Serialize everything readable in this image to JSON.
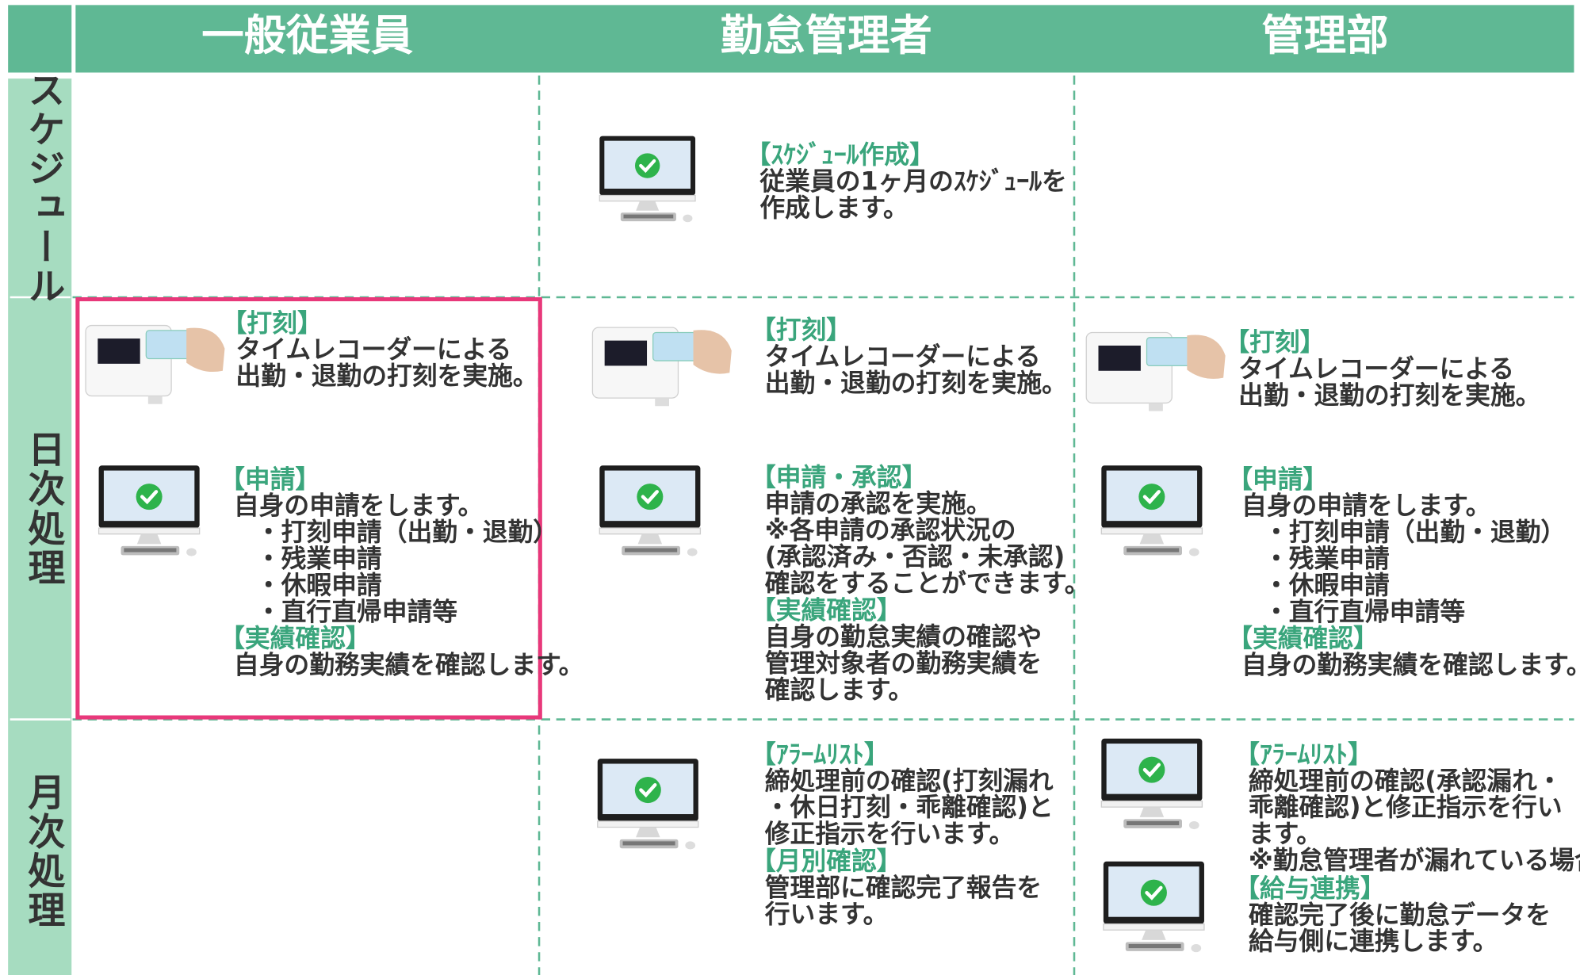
{
  "header": {
    "columns": [
      "一般従業員",
      "勤怠管理者",
      "管理部"
    ]
  },
  "rows": [
    {
      "label": "スケジュール",
      "cells": [
        [],
        [
          {
            "heading": "【ｽｹｼﾞｭｰﾙ作成】",
            "lines": [
              "従業員の1ヶ月のｽｹｼﾞｭｰﾙを",
              "作成します。"
            ]
          }
        ],
        []
      ]
    },
    {
      "label": "日次処理",
      "cells": [
        [
          {
            "heading": "【打刻】",
            "lines": [
              "タイムレコーダーによる",
              "出勤・退勤の打刻を実施。"
            ]
          },
          {
            "heading": "【申請】",
            "lines": [
              "自身の申請をします。"
            ],
            "items": [
              "・打刻申請（出勤・退勤）",
              "・残業申請",
              "・休暇申請",
              "・直行直帰申請等"
            ]
          },
          {
            "heading": "【実績確認】",
            "lines": [
              "自身の勤務実績を確認します。"
            ]
          }
        ],
        [
          {
            "heading": "【打刻】",
            "lines": [
              "タイムレコーダーによる",
              "出勤・退勤の打刻を実施。"
            ]
          },
          {
            "heading": "【申請・承認】",
            "lines": [
              "申請の承認を実施。",
              "※各申請の承認状況の",
              "(承認済み・否認・未承認)",
              "確認をすることができます。"
            ]
          },
          {
            "heading": "【実績確認】",
            "lines": [
              "自身の勤怠実績の確認や",
              "管理対象者の勤務実績を",
              "確認します。"
            ]
          }
        ],
        [
          {
            "heading": "【打刻】",
            "lines": [
              "タイムレコーダーによる",
              "出勤・退勤の打刻を実施。"
            ]
          },
          {
            "heading": "【申請】",
            "lines": [
              "自身の申請をします。"
            ],
            "items": [
              "・打刻申請（出勤・退勤）",
              "・残業申請",
              "・休暇申請",
              "・直行直帰申請等"
            ]
          },
          {
            "heading": "【実績確認】",
            "lines": [
              "自身の勤務実績を確認します。"
            ]
          }
        ]
      ]
    },
    {
      "label": "月次処理",
      "cells": [
        [],
        [
          {
            "heading": "【ｱﾗｰﾑﾘｽﾄ】",
            "lines": [
              "締処理前の確認(打刻漏れ",
              "・休日打刻・乖離確認)と",
              "修正指示を行います。"
            ]
          },
          {
            "heading": "【月別確認】",
            "lines": [
              "管理部に確認完了報告を",
              "行います。"
            ]
          }
        ],
        [
          {
            "heading": "【ｱﾗｰﾑﾘｽﾄ】",
            "lines": [
              "締処理前の確認(承認漏れ・",
              "乖離確認)と修正指示を行い",
              "ます。",
              "※勤怠管理者が漏れている場合"
            ]
          },
          {
            "heading": "【給与連携】",
            "lines": [
              "確認完了後に勤怠データを",
              "給与側に連携します。"
            ]
          }
        ]
      ]
    }
  ]
}
